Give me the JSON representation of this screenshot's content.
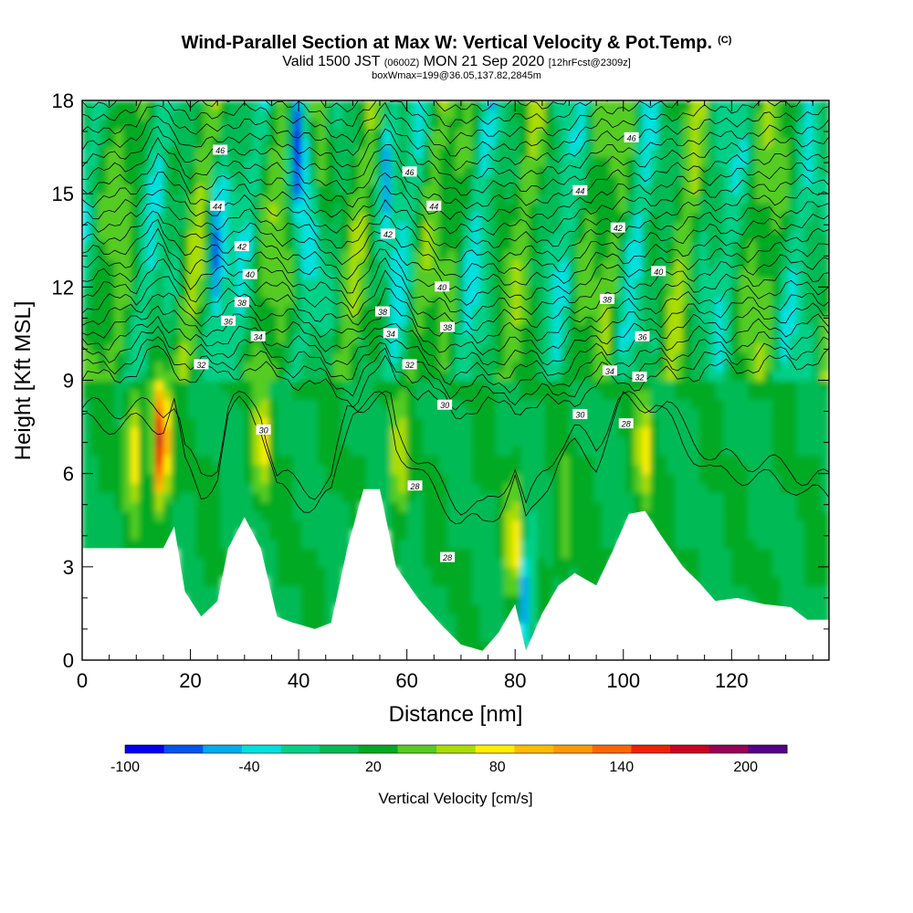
{
  "header": {
    "title": "Wind-Parallel Section at Max W: Vertical Velocity & Pot.Temp.",
    "copyright": "(C)",
    "valid_prefix": "Valid 1500 JST",
    "valid_utc": "(0600Z)",
    "valid_date": "MON 21 Sep 2020",
    "forecast": "[12hrFcst@2309z]",
    "box_info": "boxWmax=199@36.05,137.82,2845m"
  },
  "chart_data": {
    "type": "heatmap",
    "xlabel": "Distance [nm]",
    "ylabel": "Height [Kft MSL]",
    "xlim": [
      0,
      138
    ],
    "ylim": [
      0,
      18
    ],
    "x_ticks": [
      "0",
      "20",
      "40",
      "60",
      "80",
      "100",
      "120"
    ],
    "y_ticks": [
      "0",
      "3",
      "6",
      "9",
      "12",
      "15",
      "18"
    ],
    "colorbar": {
      "label": "Vertical Velocity [cm/s]",
      "tick_labels": [
        "-100",
        "-40",
        "20",
        "80",
        "140",
        "200"
      ],
      "levels": [
        -100,
        -80,
        -60,
        -40,
        -20,
        0,
        20,
        40,
        60,
        80,
        100,
        120,
        140,
        160,
        180,
        200,
        220
      ],
      "colors": [
        "#0000ee",
        "#0055ee",
        "#00aaee",
        "#00e0e0",
        "#00d088",
        "#00bb55",
        "#00aa22",
        "#55cc22",
        "#aadd00",
        "#ffee00",
        "#ffbb00",
        "#ff9900",
        "#ff6600",
        "#ee2200",
        "#cc0022",
        "#990055",
        "#550088"
      ]
    },
    "terrain_height_kft": [
      [
        0,
        3.6
      ],
      [
        15,
        3.6
      ],
      [
        17,
        4.3
      ],
      [
        19,
        2.2
      ],
      [
        22,
        1.4
      ],
      [
        25,
        1.9
      ],
      [
        27,
        3.6
      ],
      [
        30,
        4.6
      ],
      [
        33,
        3.6
      ],
      [
        36,
        1.4
      ],
      [
        39,
        1.2
      ],
      [
        43,
        1.0
      ],
      [
        46,
        1.2
      ],
      [
        49,
        3.6
      ],
      [
        52,
        5.5
      ],
      [
        55,
        5.5
      ],
      [
        58,
        3.0
      ],
      [
        62,
        2.0
      ],
      [
        66,
        1.2
      ],
      [
        70,
        0.5
      ],
      [
        74,
        0.3
      ],
      [
        77,
        0.9
      ],
      [
        80,
        1.8
      ],
      [
        82,
        0.3
      ],
      [
        85,
        1.5
      ],
      [
        88,
        2.4
      ],
      [
        91,
        2.8
      ],
      [
        95,
        2.4
      ],
      [
        98,
        3.5
      ],
      [
        101,
        4.7
      ],
      [
        104,
        4.8
      ],
      [
        107,
        4.0
      ],
      [
        111,
        3.0
      ],
      [
        114,
        2.5
      ],
      [
        117,
        1.9
      ],
      [
        121,
        2.0
      ],
      [
        126,
        1.8
      ],
      [
        131,
        1.7
      ],
      [
        134,
        1.3
      ],
      [
        138,
        1.3
      ]
    ],
    "vertical_velocity_features": [
      {
        "x": 14.5,
        "y": 7.0,
        "peak": 199
      },
      {
        "x": 9.5,
        "y": 7.0,
        "peak": 100
      },
      {
        "x": 33.5,
        "y": 7.0,
        "peak": 90
      },
      {
        "x": 58.5,
        "y": 6.5,
        "peak": 85
      },
      {
        "x": 80.0,
        "y": 3.5,
        "peak": 100
      },
      {
        "x": 89.0,
        "y": 4.3,
        "peak": 70
      },
      {
        "x": 104.0,
        "y": 6.8,
        "peak": 90
      },
      {
        "x": 40.0,
        "y": 16.5,
        "peak": -100
      },
      {
        "x": 44.5,
        "y": 16.5,
        "peak": 90
      },
      {
        "x": 82.0,
        "y": 2.4,
        "peak": -65
      },
      {
        "x": 56.5,
        "y": 15.8,
        "peak": -40
      },
      {
        "x": 25.0,
        "y": 13.0,
        "peak": -50
      }
    ],
    "potential_temperature_labels": [
      "28",
      "30",
      "32",
      "34",
      "36",
      "38",
      "40",
      "42",
      "44",
      "46"
    ],
    "contour_labels": [
      {
        "x": 25.5,
        "y": 16.4,
        "text": "46"
      },
      {
        "x": 60.5,
        "y": 15.7,
        "text": "46"
      },
      {
        "x": 101.5,
        "y": 16.8,
        "text": "46"
      },
      {
        "x": 25.0,
        "y": 14.6,
        "text": "44"
      },
      {
        "x": 65.0,
        "y": 14.6,
        "text": "44"
      },
      {
        "x": 92.0,
        "y": 15.1,
        "text": "44"
      },
      {
        "x": 29.5,
        "y": 13.3,
        "text": "42"
      },
      {
        "x": 56.5,
        "y": 13.7,
        "text": "42"
      },
      {
        "x": 99.0,
        "y": 13.9,
        "text": "42"
      },
      {
        "x": 31.0,
        "y": 12.4,
        "text": "40"
      },
      {
        "x": 66.5,
        "y": 12.0,
        "text": "40"
      },
      {
        "x": 106.5,
        "y": 12.5,
        "text": "40"
      },
      {
        "x": 29.5,
        "y": 11.5,
        "text": "38"
      },
      {
        "x": 55.5,
        "y": 11.2,
        "text": "38"
      },
      {
        "x": 67.5,
        "y": 10.7,
        "text": "38"
      },
      {
        "x": 97.0,
        "y": 11.6,
        "text": "38"
      },
      {
        "x": 27.0,
        "y": 10.9,
        "text": "36"
      },
      {
        "x": 103.5,
        "y": 10.4,
        "text": "36"
      },
      {
        "x": 32.5,
        "y": 10.4,
        "text": "34"
      },
      {
        "x": 57.0,
        "y": 10.5,
        "text": "34"
      },
      {
        "x": 97.5,
        "y": 9.3,
        "text": "34"
      },
      {
        "x": 22.0,
        "y": 9.5,
        "text": "32"
      },
      {
        "x": 60.5,
        "y": 9.5,
        "text": "32"
      },
      {
        "x": 103.0,
        "y": 9.1,
        "text": "32"
      },
      {
        "x": 33.5,
        "y": 7.4,
        "text": "30"
      },
      {
        "x": 67.0,
        "y": 8.2,
        "text": "30"
      },
      {
        "x": 92.0,
        "y": 7.9,
        "text": "30"
      },
      {
        "x": 61.5,
        "y": 5.6,
        "text": "28"
      },
      {
        "x": 67.5,
        "y": 3.3,
        "text": "28"
      },
      {
        "x": 100.5,
        "y": 7.6,
        "text": "28"
      }
    ]
  }
}
